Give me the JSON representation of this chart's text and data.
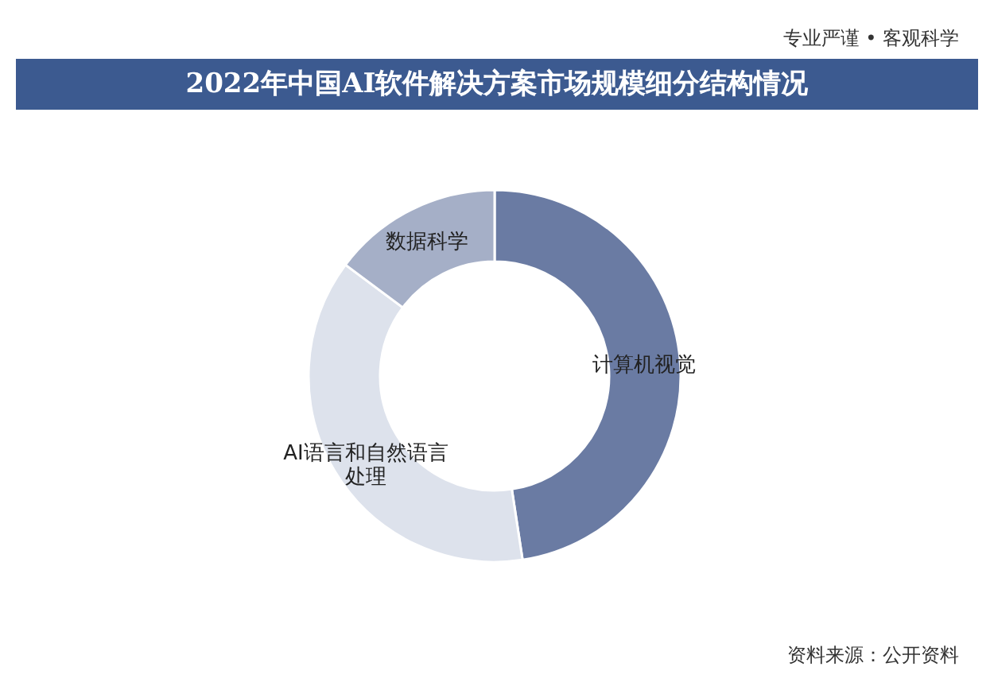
{
  "chart_data": {
    "type": "donut",
    "title": "2022年中国AI软件解决方案市场规模细分结构情况",
    "categories": [
      "计算机视觉",
      "AI语言和自然语言处理",
      "数据科学"
    ],
    "values": [
      47.6,
      37.6,
      14.8
    ],
    "colors": [
      "#6a7ba3",
      "#dde2ec",
      "#a5afc7"
    ],
    "annotations": [
      "专业严谨 • 客观科学",
      "资料来源：公开资料"
    ]
  }
}
